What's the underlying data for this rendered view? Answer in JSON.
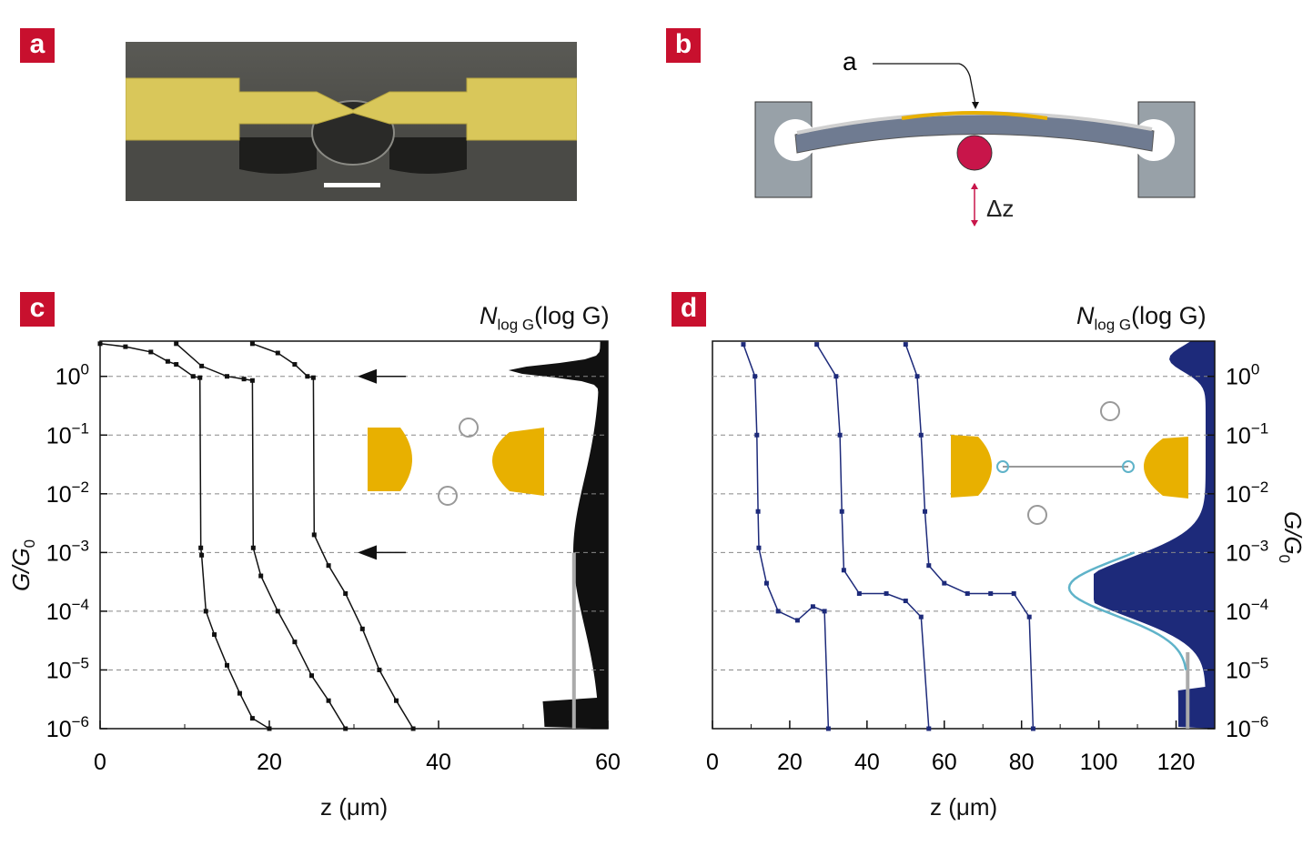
{
  "panels": {
    "a": {
      "label": "a"
    },
    "b": {
      "label": "b",
      "annotation_a": "a",
      "delta_z": "Δz"
    },
    "c": {
      "label": "c",
      "hist_title_main": "N",
      "hist_title_sub": "log G",
      "hist_title_arg": "(log G)",
      "ylabel": "G/G",
      "ylabel_sub": "0",
      "xlabel": "z (μm)"
    },
    "d": {
      "label": "d",
      "hist_title_main": "N",
      "hist_title_sub": "log G",
      "hist_title_arg": "(log G)",
      "ylabel": "G/G",
      "ylabel_sub": "0",
      "xlabel": "z (μm)"
    }
  },
  "colors": {
    "panel_label": "#c8102e",
    "gold": "#e8b000",
    "trace_c": "#111111",
    "trace_d": "#1d2a7a",
    "fit": "#5fb3c9"
  },
  "chart_data": [
    {
      "id": "c",
      "type": "line",
      "xlabel": "z (μm)",
      "ylabel": "G/G0",
      "xlim": [
        0,
        60
      ],
      "xticks": [
        0,
        20,
        40,
        60
      ],
      "ylim_log10": [
        -6,
        0.6
      ],
      "yticks": [
        "10^0",
        "10^-1",
        "10^-2",
        "10^-3",
        "10^-4",
        "10^-5",
        "10^-6"
      ],
      "grid": "dashed horizontal at decades",
      "series": [
        {
          "values": [
            [
              0,
              3.6
            ],
            [
              3,
              3.2
            ],
            [
              6,
              2.6
            ],
            [
              8,
              1.8
            ],
            [
              9,
              1.6
            ],
            [
              11,
              1.0
            ],
            [
              11.8,
              0.95
            ],
            [
              11.9,
              0.0012
            ],
            [
              12,
              0.0009
            ],
            [
              12.5,
              0.0001
            ],
            [
              13.5,
              4e-05
            ],
            [
              15,
              1.2e-05
            ],
            [
              16.5,
              4e-06
            ],
            [
              18,
              1.5e-06
            ],
            [
              20,
              1e-06
            ]
          ]
        },
        {
          "values": [
            [
              9,
              3.6
            ],
            [
              12,
              1.5
            ],
            [
              15,
              1.0
            ],
            [
              17,
              0.9
            ],
            [
              18,
              0.85
            ],
            [
              18.1,
              0.0012
            ],
            [
              19,
              0.0004
            ],
            [
              21,
              0.0001
            ],
            [
              23,
              3e-05
            ],
            [
              25,
              8e-06
            ],
            [
              27,
              3e-06
            ],
            [
              29,
              1e-06
            ]
          ]
        },
        {
          "values": [
            [
              18,
              3.6
            ],
            [
              21,
              2.5
            ],
            [
              23,
              1.6
            ],
            [
              24.5,
              1.0
            ],
            [
              25.2,
              0.95
            ],
            [
              25.3,
              0.002
            ],
            [
              27,
              0.0006
            ],
            [
              29,
              0.0002
            ],
            [
              31,
              5e-05
            ],
            [
              33,
              1e-05
            ],
            [
              35,
              3e-06
            ],
            [
              37,
              1e-06
            ]
          ]
        }
      ],
      "histogram_side": "right",
      "annotations": [
        "arrow at 10^0",
        "arrow at 10^-3"
      ]
    },
    {
      "id": "d",
      "type": "line",
      "xlabel": "z (μm)",
      "ylabel": "G/G0",
      "xlim": [
        0,
        130
      ],
      "xticks": [
        0,
        20,
        40,
        60,
        80,
        100,
        120
      ],
      "ylim_log10": [
        -6,
        0.6
      ],
      "yticks": [
        "10^0",
        "10^-1",
        "10^-2",
        "10^-3",
        "10^-4",
        "10^-5",
        "10^-6"
      ],
      "grid": "dashed horizontal at decades",
      "series": [
        {
          "values": [
            [
              8,
              3.5
            ],
            [
              11,
              1.0
            ],
            [
              11.5,
              0.1
            ],
            [
              11.8,
              0.005
            ],
            [
              12,
              0.0012
            ],
            [
              14,
              0.0003
            ],
            [
              17,
              0.0001
            ],
            [
              22,
              7e-05
            ],
            [
              26,
              0.00012
            ],
            [
              29,
              0.0001
            ],
            [
              30,
              1e-06
            ]
          ]
        },
        {
          "values": [
            [
              27,
              3.5
            ],
            [
              32,
              1.0
            ],
            [
              33,
              0.1
            ],
            [
              33.5,
              0.005
            ],
            [
              34,
              0.0005
            ],
            [
              38,
              0.0002
            ],
            [
              45,
              0.0002
            ],
            [
              50,
              0.00015
            ],
            [
              54,
              8e-05
            ],
            [
              56,
              1e-06
            ]
          ]
        },
        {
          "values": [
            [
              50,
              3.5
            ],
            [
              53,
              1.0
            ],
            [
              54,
              0.1
            ],
            [
              55,
              0.005
            ],
            [
              56,
              0.0006
            ],
            [
              60,
              0.0003
            ],
            [
              66,
              0.0002
            ],
            [
              72,
              0.0002
            ],
            [
              78,
              0.0002
            ],
            [
              82,
              8e-05
            ],
            [
              83,
              1e-06
            ]
          ]
        }
      ],
      "histogram_side": "right",
      "fit": "gaussian peak near 10^-3.6"
    }
  ]
}
